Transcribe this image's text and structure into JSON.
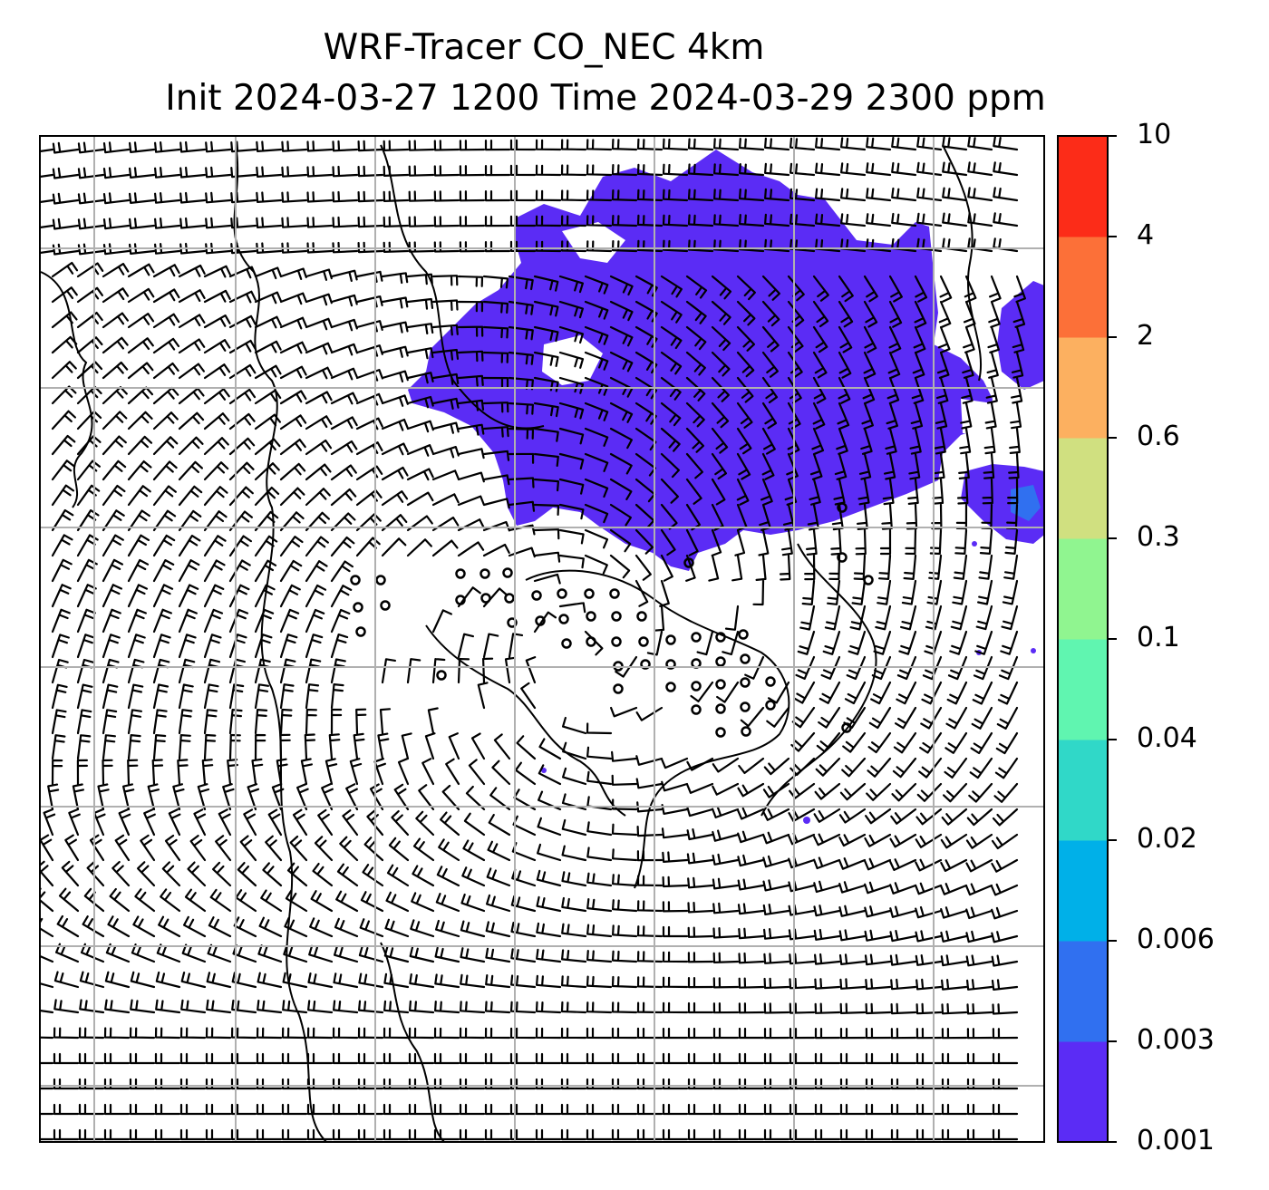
{
  "title": {
    "line1": "WRF-Tracer CO_NEC 4km",
    "line2": "Init 2024-03-27 1200 Time 2024-03-29 2300 ppm"
  },
  "colorbar": {
    "levels": [
      "0.001",
      "0.003",
      "0.006",
      "0.02",
      "0.04",
      "0.1",
      "0.3",
      "0.6",
      "2",
      "4",
      "10"
    ],
    "colors": [
      "#5b2cf5",
      "#3070f0",
      "#00b0e8",
      "#30d8c8",
      "#60f5b0",
      "#90f590",
      "#d0e080",
      "#fcb060",
      "#fc7038",
      "#fc2c18"
    ]
  },
  "map": {
    "plume_color": "#5b2cf5",
    "plume_core_color": "#3070f0",
    "gridline_color": "#b0b0b0",
    "wind_barbs": "black"
  }
}
